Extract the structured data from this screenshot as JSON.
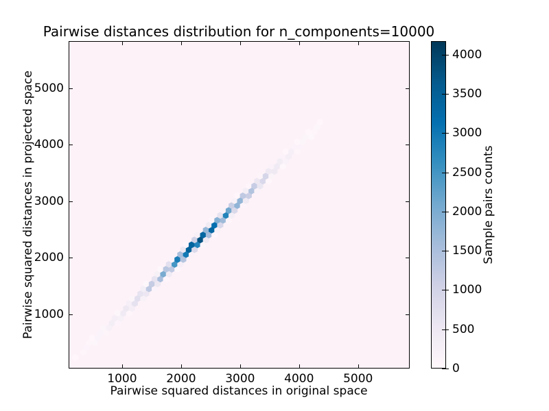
{
  "chart_data": {
    "type": "hexbin",
    "title": "Pairwise distances distribution for n_components=10000",
    "xlabel": "Pairwise squared distances in original space",
    "ylabel": "Pairwise squared distances in projected space",
    "colorbar_label": "Sample pairs counts",
    "x_ticks": [
      1000,
      2000,
      3000,
      4000,
      5000
    ],
    "y_ticks": [
      1000,
      2000,
      3000,
      4000,
      5000
    ],
    "x_range": [
      93,
      5876
    ],
    "y_range": [
      36,
      5836
    ],
    "colorbar_ticks": [
      0,
      500,
      1000,
      1500,
      2000,
      2500,
      3000,
      3500,
      4000
    ],
    "vmax": 4174,
    "colormap_name": "PuBu",
    "colormap_stops": [
      "#fff7fb",
      "#ece7f2",
      "#d0d1e6",
      "#a6bddb",
      "#74a9cf",
      "#3690c0",
      "#0570b0",
      "#045a8d",
      "#023858"
    ],
    "zero_count_background": "#fdf2f8",
    "axis_color": "#000000",
    "diagonal": {
      "identity_line": true,
      "extent": [
        170,
        4440
      ],
      "count_profile": [
        [
          170,
          35
        ],
        [
          400,
          90
        ],
        [
          600,
          150
        ],
        [
          800,
          260
        ],
        [
          1000,
          420
        ],
        [
          1200,
          620
        ],
        [
          1400,
          920
        ],
        [
          1600,
          1400
        ],
        [
          1800,
          2200
        ],
        [
          1950,
          2900
        ],
        [
          2100,
          3600
        ],
        [
          2200,
          4100
        ],
        [
          2300,
          4174
        ],
        [
          2450,
          3900
        ],
        [
          2600,
          3300
        ],
        [
          2750,
          2800
        ],
        [
          2900,
          2200
        ],
        [
          3050,
          1700
        ],
        [
          3200,
          1250
        ],
        [
          3400,
          850
        ],
        [
          3600,
          520
        ],
        [
          3800,
          300
        ],
        [
          4000,
          170
        ],
        [
          4200,
          90
        ],
        [
          4440,
          40
        ]
      ]
    }
  }
}
